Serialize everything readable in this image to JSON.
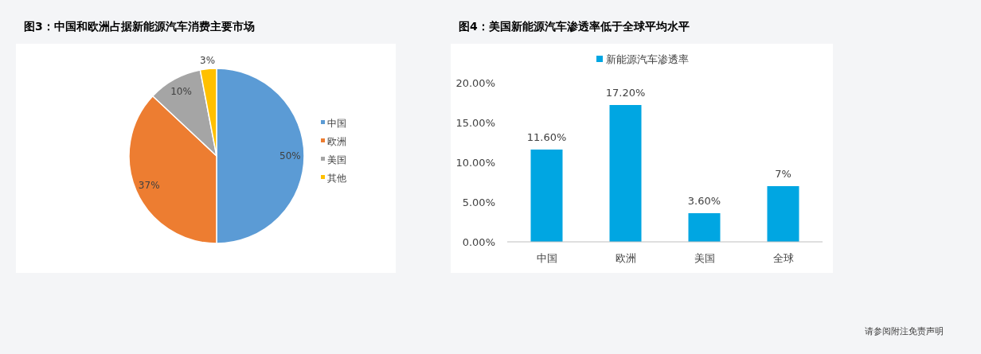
{
  "chart_data": [
    {
      "type": "pie",
      "title": "图3：中国和欧洲占据新能源汽车消费主要市场",
      "categories": [
        "中国",
        "欧洲",
        "美国",
        "其他"
      ],
      "values": [
        50,
        37,
        10,
        3
      ],
      "colors": [
        "#5b9bd5",
        "#ed7d31",
        "#a5a5a5",
        "#ffc000"
      ],
      "value_labels": [
        "50%",
        "37%",
        "10%",
        "3%"
      ],
      "legend": "right"
    },
    {
      "type": "bar",
      "title": "图4：美国新能源汽车渗透率低于全球平均水平",
      "categories": [
        "中国",
        "欧洲",
        "美国",
        "全球"
      ],
      "series": [
        {
          "name": "新能源汽车渗透率",
          "color": "#00a6e2",
          "values": [
            11.6,
            17.2,
            3.6,
            7
          ],
          "value_labels": [
            "11.60%",
            "17.20%",
            "3.60%",
            "7%"
          ]
        }
      ],
      "ylim": [
        0,
        20
      ],
      "yticks": [
        {
          "value": 0,
          "label": "0.00%"
        },
        {
          "value": 5,
          "label": "5.00%"
        },
        {
          "value": 10,
          "label": "10.00%"
        },
        {
          "value": 15,
          "label": "15.00%"
        },
        {
          "value": 20,
          "label": "20.00%"
        }
      ],
      "legend": "top",
      "grid": false,
      "annotations": [
        "请参阅附注免责声明"
      ]
    }
  ]
}
